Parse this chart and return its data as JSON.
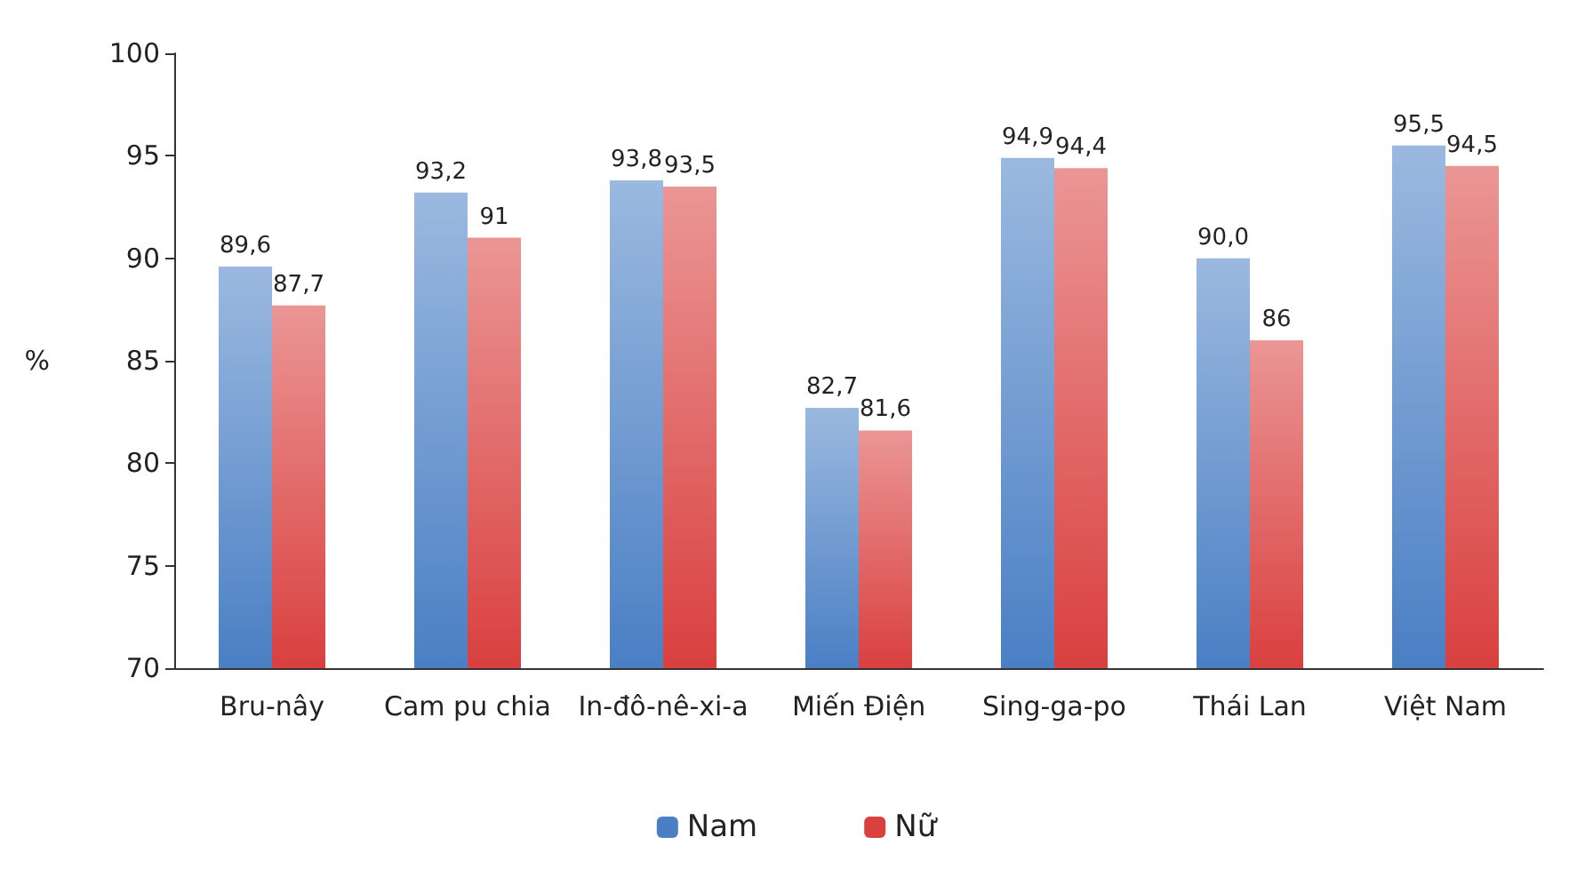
{
  "chart_data": {
    "type": "bar",
    "ylabel": "%",
    "categories": [
      "Bru-nây",
      "Cam pu chia",
      "In-đô-nê-xi-a",
      "Miến Điện",
      "Sing-ga-po",
      "Thái Lan",
      "Việt Nam"
    ],
    "series": [
      {
        "name": "Nam",
        "color": "#4a7fc4",
        "values": [
          89.6,
          93.2,
          93.8,
          82.7,
          94.9,
          90.0,
          95.5
        ],
        "value_labels": [
          "89,6",
          "93,2",
          "93,8",
          "82,7",
          "94,9",
          "90,0",
          "95,5"
        ]
      },
      {
        "name": "Nữ",
        "color": "#d9403f",
        "values": [
          87.7,
          91,
          93.5,
          81.6,
          94.4,
          86,
          94.5
        ],
        "value_labels": [
          "87,7",
          "91",
          "93,5",
          "81,6",
          "94,4",
          "86",
          "94,5"
        ]
      }
    ],
    "ylim": [
      70,
      100
    ],
    "yticks": [
      70,
      75,
      80,
      85,
      90,
      95,
      100
    ],
    "grid": false,
    "legend": "bottom"
  }
}
